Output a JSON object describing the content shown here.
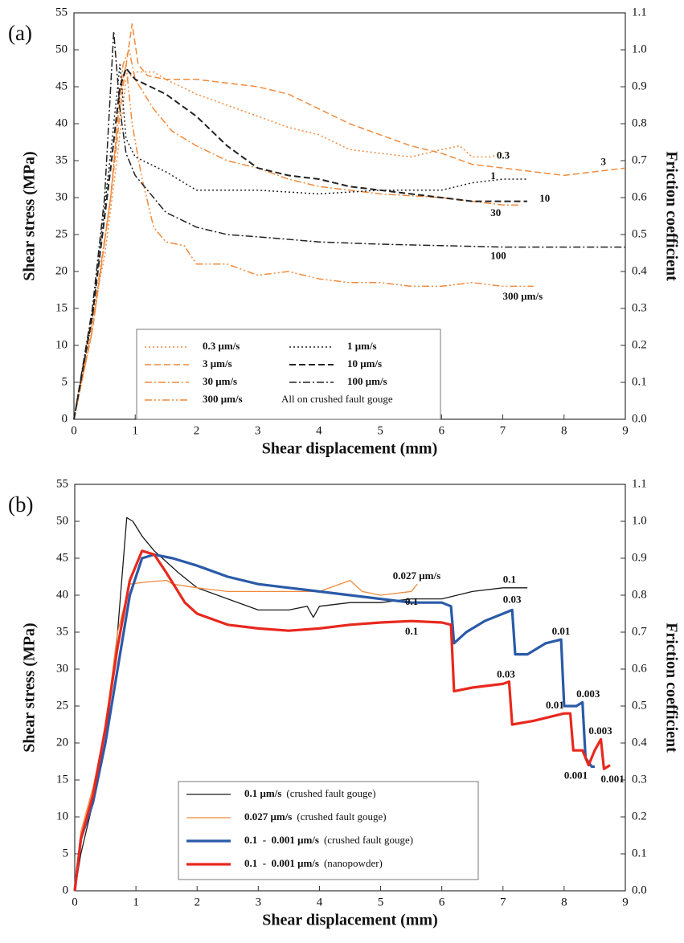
{
  "chart_data": [
    {
      "type": "line",
      "panel_label": "(a)",
      "xlabel": "Shear displacement (mm)",
      "ylabel": "Shear  stress (MPa)",
      "y2label": "Friction coefficient",
      "xlim": [
        0,
        9
      ],
      "xticks": [
        0,
        1,
        2,
        3,
        4,
        5,
        6,
        7,
        8,
        9
      ],
      "ylim": [
        0,
        55
      ],
      "yticks": [
        0,
        5,
        10,
        15,
        20,
        25,
        30,
        35,
        40,
        45,
        50,
        55
      ],
      "y2lim": [
        0,
        1.1
      ],
      "y2ticks": [
        {
          "value": 0,
          "label": "0.0"
        },
        0.1,
        0.2,
        0.3,
        0.4,
        0.5,
        0.6,
        0.7,
        0.8,
        0.9,
        {
          "value": 1,
          "label": "1.0"
        },
        1.1
      ],
      "series": [
        {
          "name": "0.3 μm/s",
          "color": "#f08a3c",
          "label_color": "#e8281e",
          "dash": "dotted",
          "linewidth": 1.5,
          "x": [
            0,
            0.2,
            0.5,
            0.7,
            0.85,
            1.0,
            1.3,
            1.5,
            2,
            2.5,
            3,
            3.5,
            4,
            4.5,
            5,
            5.5,
            6,
            6.3,
            6.5,
            6.8,
            7
          ],
          "values": [
            0,
            10,
            22,
            35,
            46,
            47,
            47,
            46,
            44,
            42.5,
            41,
            39.5,
            38.5,
            36.5,
            36,
            35.5,
            36.5,
            37,
            35.5,
            35.5,
            36
          ]
        },
        {
          "name": "3 μm/s",
          "color": "#f08a3c",
          "label_color": "#e8281e",
          "dash": "dashed",
          "linewidth": 1.5,
          "x": [
            0,
            0.3,
            0.6,
            0.8,
            0.95,
            1.05,
            1.2,
            1.5,
            2,
            2.5,
            3,
            3.5,
            4,
            4.5,
            5,
            5.5,
            6,
            6.5,
            7,
            7.5,
            8,
            8.5,
            9
          ],
          "values": [
            0,
            12,
            30,
            45,
            53.5,
            48,
            46.5,
            46,
            46,
            45.5,
            45,
            44,
            42,
            40,
            38.5,
            37,
            36,
            34.5,
            34,
            33.5,
            33,
            33.5,
            34
          ]
        },
        {
          "name": "30 μm/s",
          "color": "#f08a3c",
          "label_color": "#e8281e",
          "dash": "dashdot",
          "linewidth": 1.5,
          "x": [
            0,
            0.3,
            0.6,
            0.8,
            0.9,
            1.0,
            1.3,
            1.6,
            2,
            2.5,
            3,
            3.5,
            4,
            5,
            6,
            7,
            7.3
          ],
          "values": [
            0,
            12,
            30,
            48,
            50,
            46,
            42,
            39,
            37,
            35,
            34,
            32.5,
            31.5,
            30.5,
            30,
            29,
            29
          ]
        },
        {
          "name": "300 μm/s",
          "color": "#f08a3c",
          "label_color": "#e8281e",
          "dash": "dashdotdot",
          "linewidth": 1.5,
          "x": [
            0,
            0.3,
            0.6,
            0.75,
            0.85,
            0.95,
            1.1,
            1.3,
            1.5,
            1.8,
            2,
            2.5,
            3,
            3.5,
            4,
            4.5,
            5,
            5.5,
            6,
            6.5,
            7,
            7.5
          ],
          "values": [
            0,
            13,
            30,
            44,
            48,
            40,
            33,
            26,
            24,
            23.5,
            21,
            21,
            19.5,
            20,
            19,
            18.5,
            18.5,
            18,
            18,
            18.5,
            18,
            18
          ]
        },
        {
          "name": "1 μm/s",
          "color": "#222222",
          "label_color": "#111111",
          "dash": "dotted",
          "linewidth": 1.5,
          "x": [
            0,
            0.3,
            0.6,
            0.75,
            0.85,
            1.0,
            1.5,
            2,
            3,
            4,
            5,
            6,
            6.5,
            7,
            7.4
          ],
          "values": [
            0,
            14,
            36,
            48,
            38,
            35.5,
            33.5,
            31,
            31,
            30.5,
            31,
            31,
            32,
            32.5,
            32.5
          ]
        },
        {
          "name": "10 μm/s",
          "color": "#222222",
          "label_color": "#111111",
          "dash": "dashed",
          "linewidth": 2,
          "x": [
            0,
            0.3,
            0.6,
            0.75,
            0.85,
            1.0,
            1.5,
            2,
            2.5,
            3,
            3.5,
            4,
            4.5,
            5,
            5.5,
            6,
            6.5,
            7,
            7.4
          ],
          "values": [
            0,
            14,
            34,
            45,
            47.5,
            46,
            44,
            41,
            37,
            34,
            33,
            32.5,
            31.5,
            31,
            30.5,
            30,
            29.5,
            29.5,
            29.5
          ]
        },
        {
          "name": "100 μm/s",
          "color": "#222222",
          "label_color": "#111111",
          "dash": "dashdot",
          "linewidth": 1.5,
          "x": [
            0,
            0.3,
            0.5,
            0.65,
            0.75,
            0.85,
            1.0,
            1.5,
            2,
            2.5,
            3,
            4,
            5,
            6,
            7,
            8,
            9
          ],
          "values": [
            0,
            15,
            30,
            52.5,
            42,
            36,
            33,
            28,
            26,
            25,
            24.7,
            24,
            23.7,
            23.5,
            23.3,
            23.3,
            23.3
          ]
        }
      ],
      "legend_note": "All on crushed fault gouge",
      "annotations": [
        {
          "text": "0.3",
          "x": 6.9,
          "y": 35.6,
          "color": "#f08a3c"
        },
        {
          "text": "3",
          "x": 8.6,
          "y": 34.7,
          "color": "#f08a3c"
        },
        {
          "text": "1",
          "x": 6.8,
          "y": 32.8,
          "color": "#222222"
        },
        {
          "text": "10",
          "x": 7.6,
          "y": 29.8,
          "color": "#222222"
        },
        {
          "text": "30",
          "x": 6.8,
          "y": 27.8,
          "color": "#f08a3c"
        },
        {
          "text": "100",
          "x": 6.8,
          "y": 22,
          "color": "#222222"
        },
        {
          "text": "300 μm/s",
          "x": 7.0,
          "y": 16.5,
          "color": "#f08a3c"
        }
      ]
    },
    {
      "type": "line",
      "panel_label": "(b)",
      "xlabel": "Shear displacement (mm)",
      "ylabel": "Shear  stress (MPa)",
      "y2label": "Friction coefficient",
      "xlim": [
        0,
        9
      ],
      "xticks": [
        0,
        1,
        2,
        3,
        4,
        5,
        6,
        7,
        8,
        9
      ],
      "ylim": [
        0,
        55
      ],
      "yticks": [
        0,
        5,
        10,
        15,
        20,
        25,
        30,
        35,
        40,
        45,
        50,
        55
      ],
      "y2lim": [
        0,
        1.1
      ],
      "y2ticks": [
        {
          "value": 0,
          "label": "0.0"
        },
        0.1,
        0.2,
        0.3,
        0.4,
        0.5,
        0.6,
        0.7,
        0.8,
        0.9,
        {
          "value": 1,
          "label": "1.0"
        },
        1.1
      ],
      "series": [
        {
          "name": "0.1 μm/s",
          "note": "(crushed fault gouge)",
          "color": "#1a1a1a",
          "label_color": "#111111",
          "dash": "solid",
          "linewidth": 1.3,
          "x": [
            0,
            0.1,
            0.3,
            0.5,
            0.7,
            0.85,
            0.95,
            1.1,
            1.3,
            1.5,
            1.7,
            2,
            2.5,
            3,
            3.5,
            3.8,
            3.9,
            4,
            4.5,
            5,
            5.5,
            6,
            6.5,
            7,
            7.4
          ],
          "values": [
            0,
            5,
            12,
            20,
            35,
            50.5,
            50,
            48,
            46,
            44.5,
            43,
            41,
            39.5,
            38,
            38,
            38.5,
            37,
            38.5,
            39,
            39,
            39.5,
            39.5,
            40.5,
            41,
            41
          ]
        },
        {
          "name": "0.027 μm/s",
          "note": "(crushed fault gouge)",
          "color": "#f08a3c",
          "label_color": "#e8281e",
          "dash": "solid",
          "linewidth": 1.3,
          "x": [
            0,
            0.1,
            0.3,
            0.5,
            0.7,
            0.9,
            1.2,
            1.5,
            1.6,
            2,
            2.5,
            3,
            3.5,
            4,
            4.5,
            4.7,
            5,
            5.5,
            5.6
          ],
          "values": [
            0,
            8,
            14,
            22,
            35,
            41.5,
            41.8,
            42,
            41.5,
            41,
            40.5,
            40.5,
            40.5,
            40.5,
            42,
            40.5,
            40,
            40.5,
            41.5
          ]
        },
        {
          "name": "0.1  -  0.001 μm/s",
          "note": "(crushed fault gouge)",
          "color": "#2a5aa8",
          "label_color": "#2a5aa8",
          "dash": "solid",
          "linewidth": 3.2,
          "x": [
            0,
            0.1,
            0.3,
            0.5,
            0.7,
            0.9,
            1.1,
            1.3,
            1.6,
            2,
            2.5,
            3,
            3.5,
            4,
            4.5,
            5,
            5.5,
            6,
            6.15,
            6.2,
            6.4,
            6.7,
            7,
            7.15,
            7.2,
            7.4,
            7.7,
            7.95,
            8,
            8.2,
            8.3,
            8.35,
            8.45,
            8.5
          ],
          "values": [
            0,
            7,
            12,
            20,
            30,
            40,
            45,
            45.5,
            45,
            44,
            42.5,
            41.5,
            41,
            40.5,
            40,
            39.5,
            39,
            39,
            38.5,
            33.5,
            35,
            36.5,
            37.5,
            38,
            32,
            32,
            33.5,
            34,
            25,
            25,
            25.5,
            18,
            16.8,
            16.8
          ]
        },
        {
          "name": "0.1  -  0.001 μm/s",
          "note": "(nanopowder)",
          "color": "#e8281e",
          "label_color": "#e8281e",
          "dash": "solid",
          "linewidth": 3.2,
          "x": [
            0,
            0.1,
            0.3,
            0.5,
            0.7,
            0.9,
            1.1,
            1.3,
            1.5,
            1.8,
            2,
            2.5,
            3,
            3.5,
            4,
            4.5,
            5,
            5.5,
            6,
            6.15,
            6.2,
            6.5,
            7,
            7.1,
            7.15,
            7.5,
            8,
            8.1,
            8.15,
            8.3,
            8.4,
            8.5,
            8.6,
            8.65,
            8.75
          ],
          "values": [
            0,
            7,
            13,
            22,
            33,
            42,
            46,
            45.5,
            43,
            39,
            37.5,
            36,
            35.5,
            35.2,
            35.5,
            36,
            36.3,
            36.5,
            36.3,
            36,
            27,
            27.5,
            28,
            28.3,
            22.5,
            23,
            24,
            24,
            19,
            19,
            17,
            19,
            20.5,
            16.5,
            17
          ]
        }
      ],
      "annotations": [
        {
          "text": "0.027 μm/s",
          "x": 5.2,
          "y": 42.5,
          "color": "#f08a3c"
        },
        {
          "text": "0.1",
          "x": 7.0,
          "y": 42,
          "color": "#1a1a1a"
        },
        {
          "text": "0.1",
          "x": 5.4,
          "y": 39,
          "color": "#1a1a1a"
        },
        {
          "text": "0.1",
          "x": 5.4,
          "y": 35,
          "color": "#e8281e"
        },
        {
          "text": "0.03",
          "x": 7.0,
          "y": 39.3,
          "color": "#2a5aa8"
        },
        {
          "text": "0.01",
          "x": 7.8,
          "y": 35,
          "color": "#2a5aa8"
        },
        {
          "text": "0.003",
          "x": 8.2,
          "y": 26.5,
          "color": "#2a5aa8"
        },
        {
          "text": "0.001",
          "x": 8.0,
          "y": 15.5,
          "color": "#2a5aa8"
        },
        {
          "text": "0.03",
          "x": 6.9,
          "y": 29.2,
          "color": "#e8281e"
        },
        {
          "text": "0.01",
          "x": 7.7,
          "y": 25,
          "color": "#e8281e"
        },
        {
          "text": "0.003",
          "x": 8.4,
          "y": 21.5,
          "color": "#e8281e"
        },
        {
          "text": "0.001",
          "x": 8.6,
          "y": 15,
          "color": "#e8281e"
        }
      ]
    }
  ]
}
